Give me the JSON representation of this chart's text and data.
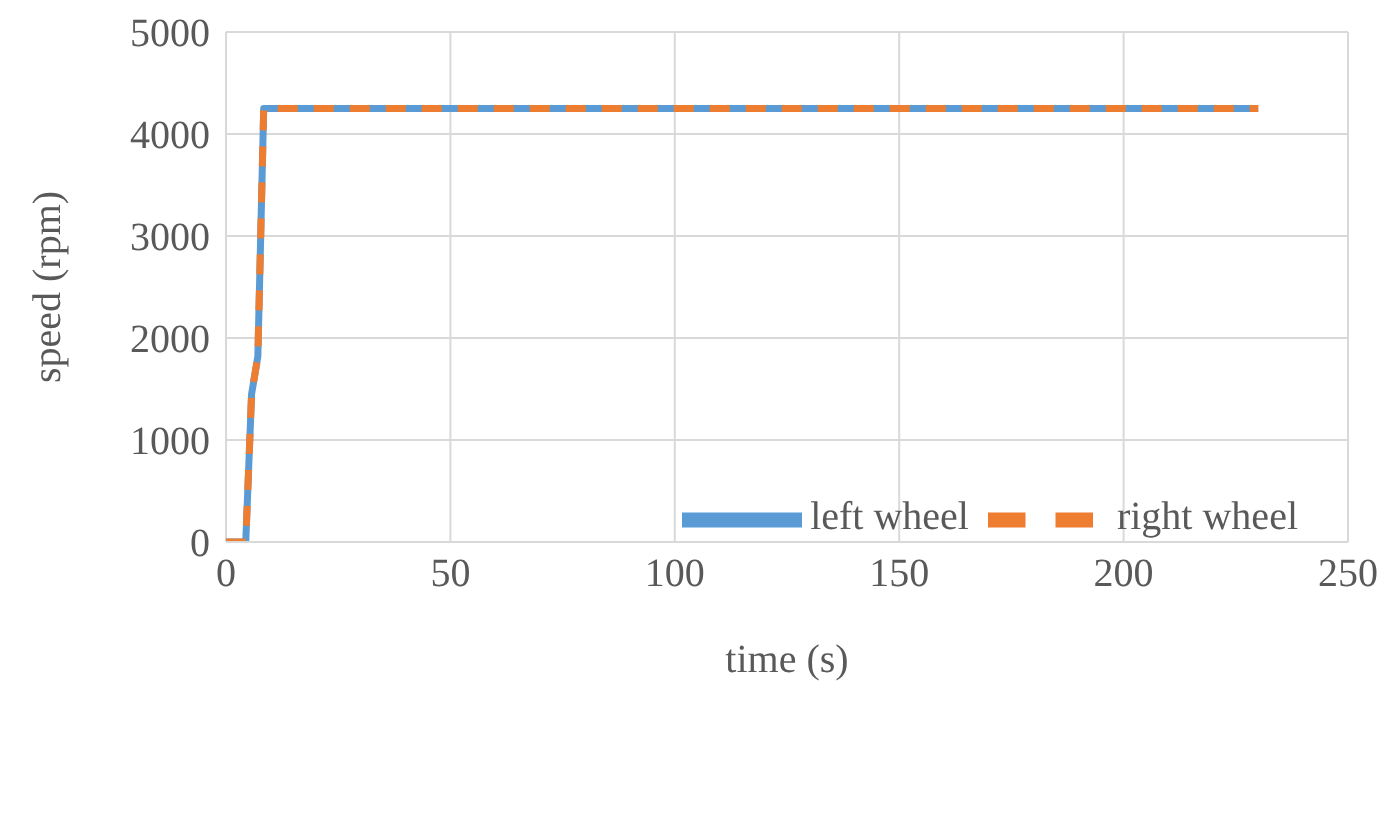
{
  "chart_data": {
    "type": "line",
    "xlabel": "time (s)",
    "ylabel": "speed (rpm)",
    "xlim": [
      0,
      250
    ],
    "xticks": [
      0,
      50,
      100,
      150,
      200,
      250
    ],
    "ylim": [
      0,
      5000
    ],
    "yticks": [
      0,
      1000,
      2000,
      3000,
      4000,
      5000
    ],
    "grid": true,
    "legend": "bottom right",
    "marker": "none",
    "x": [
      0,
      4.4,
      5.7,
      7.1,
      8.4,
      230
    ],
    "series": [
      {
        "name": "left wheel",
        "color": "#5b9bd5",
        "line_style": "solid",
        "values": [
          0,
          0,
          1450,
          1820,
          4250,
          4250
        ]
      },
      {
        "name": "right wheel",
        "color": "#ed7d31",
        "line_style": "dashed",
        "values": [
          0,
          0,
          1450,
          1820,
          4250,
          4250
        ]
      }
    ]
  }
}
